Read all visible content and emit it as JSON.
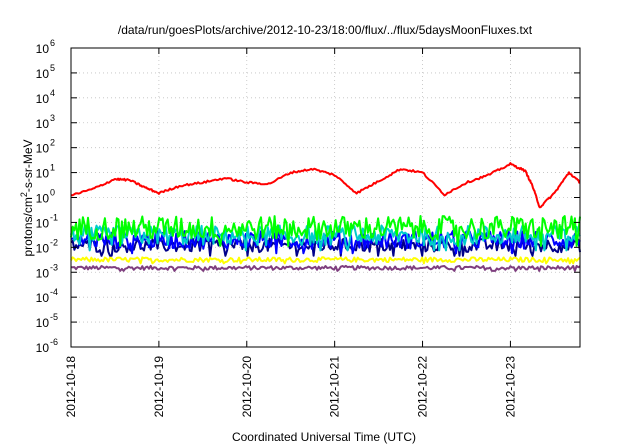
{
  "chart_data": {
    "type": "line",
    "title": "/data/run/goesPlots/archive/2012-10-23/18:00/flux/../flux/5daysMoonFluxes.txt",
    "xlabel": "Coordinated Universal Time (UTC)",
    "ylabel": "protons/cm²-s-sr-MeV",
    "yscale": "log",
    "ylim": [
      1e-06,
      1000000.0
    ],
    "xlim": [
      "2012-10-18",
      "2012-10-23 19:00"
    ],
    "grid": true,
    "y_ticks": [
      {
        "value": 1e-06,
        "exp": "-6"
      },
      {
        "value": 1e-05,
        "exp": "-5"
      },
      {
        "value": 0.0001,
        "exp": "-4"
      },
      {
        "value": 0.001,
        "exp": "-3"
      },
      {
        "value": 0.01,
        "exp": "-2"
      },
      {
        "value": 0.1,
        "exp": "-1"
      },
      {
        "value": 1,
        "exp": "0"
      },
      {
        "value": 10.0,
        "exp": "1"
      },
      {
        "value": 100.0,
        "exp": "2"
      },
      {
        "value": 1000.0,
        "exp": "3"
      },
      {
        "value": 10000.0,
        "exp": "4"
      },
      {
        "value": 100000.0,
        "exp": "5"
      },
      {
        "value": 1000000.0,
        "exp": "6"
      }
    ],
    "x_ticks": [
      "2012-10-18",
      "2012-10-19",
      "2012-10-20",
      "2012-10-21",
      "2012-10-22",
      "2012-10-23"
    ],
    "series": [
      {
        "color": "#ff0000",
        "x": [
          "2012-10-18 00:00",
          "2012-10-18 06:00",
          "2012-10-18 12:00",
          "2012-10-18 16:00",
          "2012-10-18 20:00",
          "2012-10-19 00:00",
          "2012-10-19 06:00",
          "2012-10-19 12:00",
          "2012-10-19 18:00",
          "2012-10-20 00:00",
          "2012-10-20 06:00",
          "2012-10-20 12:00",
          "2012-10-20 18:00",
          "2012-10-21 00:00",
          "2012-10-21 06:00",
          "2012-10-21 12:00",
          "2012-10-21 18:00",
          "2012-10-22 00:00",
          "2012-10-22 06:00",
          "2012-10-22 12:00",
          "2012-10-22 18:00",
          "2012-10-23 00:00",
          "2012-10-23 04:00",
          "2012-10-23 06:00",
          "2012-10-23 08:00",
          "2012-10-23 12:00",
          "2012-10-23 16:00",
          "2012-10-23 19:00"
        ],
        "values": [
          1.2,
          2.2,
          5.5,
          5,
          2.6,
          1.5,
          3,
          4,
          6,
          4,
          3.5,
          10,
          14,
          8,
          1.5,
          4.5,
          14,
          10,
          1.3,
          4,
          8,
          22,
          12,
          3,
          0.4,
          1.5,
          10,
          4
        ]
      },
      {
        "color": "#00ff00",
        "x": [
          "2012-10-18 00:00",
          "2012-10-23 19:00"
        ],
        "values": [
          0.06,
          0.06
        ],
        "noise": 0.6
      },
      {
        "color": "#00cccc",
        "x": [
          "2012-10-18 00:00",
          "2012-10-23 19:00"
        ],
        "values": [
          0.03,
          0.03
        ],
        "noise": 0.5
      },
      {
        "color": "#0000ff",
        "x": [
          "2012-10-18 00:00",
          "2012-10-23 19:00"
        ],
        "values": [
          0.02,
          0.02
        ],
        "noise": 0.45
      },
      {
        "color": "#00008b",
        "x": [
          "2012-10-18 00:00",
          "2012-10-23 19:00"
        ],
        "values": [
          0.012,
          0.012
        ],
        "noise": 0.35
      },
      {
        "color": "#ffff00",
        "x": [
          "2012-10-18 00:00",
          "2012-10-23 19:00"
        ],
        "values": [
          0.0032,
          0.0032
        ],
        "noise": 0.12
      },
      {
        "color": "#7f3f7f",
        "x": [
          "2012-10-18 00:00",
          "2012-10-23 19:00"
        ],
        "values": [
          0.0015,
          0.0015
        ],
        "noise": 0.1
      }
    ]
  }
}
